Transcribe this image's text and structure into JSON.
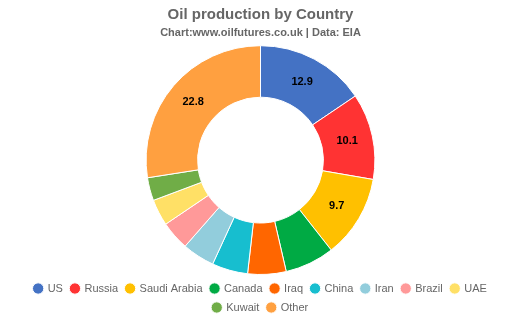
{
  "chart_data": {
    "type": "doughnut",
    "title": "Oil production by Country",
    "subtitle": "Chart:www.oilfutures.co.uk | Data: EIA",
    "categories": [
      "US",
      "Russia",
      "Saudi Arabia",
      "Canada",
      "Iraq",
      "China",
      "Iran",
      "Brazil",
      "UAE",
      "Kuwait",
      "Other"
    ],
    "values": [
      12.9,
      10.1,
      9.7,
      5.8,
      4.5,
      4.2,
      3.8,
      3.4,
      3.1,
      2.7,
      22.8
    ],
    "value_labels": [
      "12.9",
      "10.1",
      "9.7",
      null,
      null,
      null,
      null,
      null,
      null,
      null,
      "22.8"
    ],
    "colors": [
      "#4472C4",
      "#FF3333",
      "#FFC000",
      "#00AA44",
      "#FF6600",
      "#17BECF",
      "#92CDDC",
      "#FF9999",
      "#FFE066",
      "#70AD47",
      "#FFA040"
    ],
    "data_labels": true,
    "legend": "bottom"
  }
}
